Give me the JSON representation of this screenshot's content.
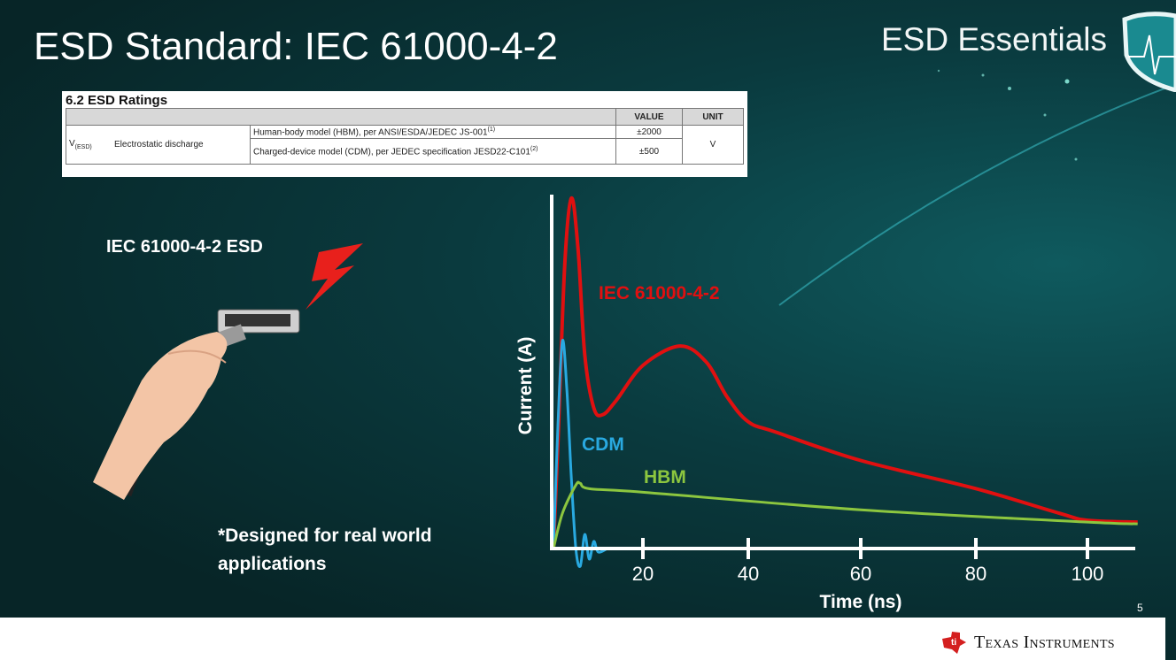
{
  "slide": {
    "title": "ESD Standard: IEC 61000-4-2",
    "brand": "ESD Essentials",
    "page_number": "5",
    "footer_brand": "Texas Instruments"
  },
  "ratings_table": {
    "heading": "6.2   ESD Ratings",
    "columns": [
      "",
      "",
      "VALUE",
      "UNIT"
    ],
    "symbol": "V",
    "symbol_sub": "(ESD)",
    "parameter": "Electrostatic discharge",
    "rows": [
      {
        "condition": "Human-body model (HBM), per ANSI/ESDA/JEDEC JS-001",
        "note": "(1)",
        "value": "±2000"
      },
      {
        "condition": "Charged-device model (CDM), per JEDEC specification JESD22-C101",
        "note": "(2)",
        "value": "±500"
      }
    ],
    "unit": "V"
  },
  "left_panel": {
    "label": "IEC 61000-4-2 ESD",
    "note_line1": "*Designed for real world",
    "note_line2": "applications"
  },
  "chart_data": {
    "type": "line",
    "xlabel": "Time (ns)",
    "ylabel": "Current (A)",
    "xticks": [
      20,
      40,
      60,
      80,
      100
    ],
    "xlim": [
      0,
      109
    ],
    "ylim": [
      0,
      1
    ],
    "grid": false,
    "series": [
      {
        "name": "IEC 61000-4-2",
        "color": "#e01010",
        "points": [
          [
            0,
            0
          ],
          [
            1,
            0.3
          ],
          [
            2.5,
            0.8
          ],
          [
            4,
            0.995
          ],
          [
            5.5,
            0.85
          ],
          [
            7,
            0.55
          ],
          [
            9,
            0.4
          ],
          [
            11,
            0.38
          ],
          [
            14,
            0.42
          ],
          [
            20,
            0.52
          ],
          [
            27,
            0.575
          ],
          [
            32,
            0.53
          ],
          [
            36,
            0.43
          ],
          [
            40,
            0.36
          ],
          [
            45,
            0.33
          ],
          [
            60,
            0.25
          ],
          [
            80,
            0.17
          ],
          [
            95,
            0.1
          ],
          [
            100,
            0.08
          ],
          [
            109,
            0.075
          ]
        ]
      },
      {
        "name": "CDM",
        "color": "#29a9e0",
        "points": [
          [
            0,
            0
          ],
          [
            1,
            0.35
          ],
          [
            2,
            0.59
          ],
          [
            3,
            0.45
          ],
          [
            4,
            0.2
          ],
          [
            5,
            0
          ],
          [
            6,
            -0.05
          ],
          [
            7,
            0.04
          ],
          [
            8,
            -0.03
          ],
          [
            9,
            0.02
          ],
          [
            10,
            -0.01
          ],
          [
            12,
            0
          ]
        ]
      },
      {
        "name": "HBM",
        "color": "#8cc63f",
        "points": [
          [
            0,
            0
          ],
          [
            2,
            0.1
          ],
          [
            5,
            0.18
          ],
          [
            6,
            0.185
          ],
          [
            8,
            0.17
          ],
          [
            20,
            0.16
          ],
          [
            60,
            0.11
          ],
          [
            100,
            0.075
          ],
          [
            109,
            0.07
          ]
        ]
      }
    ]
  }
}
